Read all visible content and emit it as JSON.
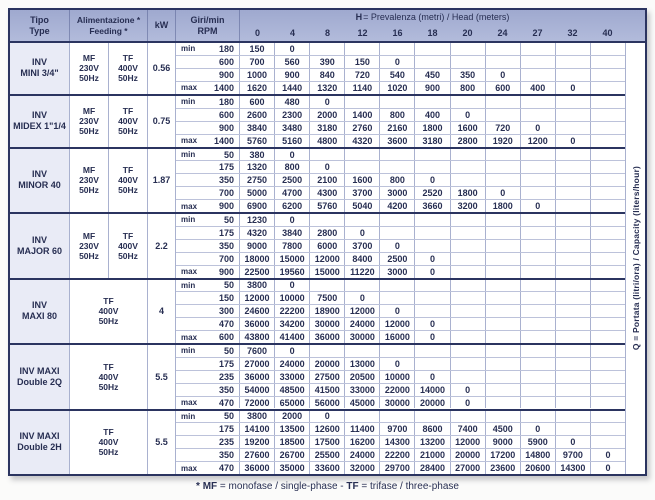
{
  "colors": {
    "header_bg_top": "#9fa9cf",
    "header_bg_bottom": "#b2bbdb",
    "group_name_bg": "#e9ebf6",
    "border_dark": "#2b3460",
    "grid_light": "#a9b1cf",
    "row_line": "#bcc2da",
    "text": "#272e52",
    "table_bg": "#ffffff",
    "page_bg": "#fbfbfa"
  },
  "header": {
    "tipo": [
      "Tipo",
      "Type"
    ],
    "feeding": [
      "Alimentazione *",
      "Feeding *"
    ],
    "kw": "kW",
    "rpm": [
      "Giri/min",
      "RPM"
    ],
    "head_title_bold": "H",
    "head_title_rest": " = Prevalenza (metri) / Head (meters)",
    "head_cols": [
      "0",
      "4",
      "8",
      "12",
      "16",
      "18",
      "20",
      "24",
      "27",
      "32",
      "40"
    ]
  },
  "q_label": "Q = Portata (litri/ora) / Capacity (liters/hour)",
  "footnote": {
    "star": "* ",
    "mf": "MF",
    "mf_rest": " = monofase / single-phase - ",
    "tf": "TF",
    "tf_rest": " = trifase / three-phase"
  },
  "groups": [
    {
      "name": [
        "INV",
        "MINI 3/4\""
      ],
      "feeding": [
        [
          "MF",
          "230V",
          "50Hz"
        ],
        [
          "TF",
          "400V",
          "50Hz"
        ]
      ],
      "kw": "0.56",
      "rows": [
        {
          "label": "min",
          "rpm": "180",
          "values": [
            "150",
            "0",
            "",
            "",
            "",
            "",
            "",
            "",
            "",
            "",
            ""
          ]
        },
        {
          "label": "",
          "rpm": "600",
          "values": [
            "700",
            "560",
            "390",
            "150",
            "0",
            "",
            "",
            "",
            "",
            "",
            ""
          ]
        },
        {
          "label": "",
          "rpm": "900",
          "values": [
            "1000",
            "900",
            "840",
            "720",
            "540",
            "450",
            "350",
            "0",
            "",
            "",
            ""
          ]
        },
        {
          "label": "max",
          "rpm": "1400",
          "values": [
            "1620",
            "1440",
            "1320",
            "1140",
            "1020",
            "900",
            "800",
            "600",
            "400",
            "0",
            ""
          ]
        }
      ]
    },
    {
      "name": [
        "INV",
        "MIDEX 1\"1/4"
      ],
      "feeding": [
        [
          "MF",
          "230V",
          "50Hz"
        ],
        [
          "TF",
          "400V",
          "50Hz"
        ]
      ],
      "kw": "0.75",
      "rows": [
        {
          "label": "min",
          "rpm": "180",
          "values": [
            "600",
            "480",
            "0",
            "",
            "",
            "",
            "",
            "",
            "",
            "",
            ""
          ]
        },
        {
          "label": "",
          "rpm": "600",
          "values": [
            "2600",
            "2300",
            "2000",
            "1400",
            "800",
            "400",
            "0",
            "",
            "",
            "",
            ""
          ]
        },
        {
          "label": "",
          "rpm": "900",
          "values": [
            "3840",
            "3480",
            "3180",
            "2760",
            "2160",
            "1800",
            "1600",
            "720",
            "0",
            "",
            ""
          ]
        },
        {
          "label": "max",
          "rpm": "1400",
          "values": [
            "5760",
            "5160",
            "4800",
            "4320",
            "3600",
            "3180",
            "2800",
            "1920",
            "1200",
            "0",
            ""
          ]
        }
      ]
    },
    {
      "name": [
        "INV",
        "MINOR 40"
      ],
      "feeding": [
        [
          "MF",
          "230V",
          "50Hz"
        ],
        [
          "TF",
          "400V",
          "50Hz"
        ]
      ],
      "kw": "1.87",
      "rows": [
        {
          "label": "min",
          "rpm": "50",
          "values": [
            "380",
            "0",
            "",
            "",
            "",
            "",
            "",
            "",
            "",
            "",
            ""
          ]
        },
        {
          "label": "",
          "rpm": "175",
          "values": [
            "1320",
            "800",
            "0",
            "",
            "",
            "",
            "",
            "",
            "",
            "",
            ""
          ]
        },
        {
          "label": "",
          "rpm": "350",
          "values": [
            "2750",
            "2500",
            "2100",
            "1600",
            "800",
            "0",
            "",
            "",
            "",
            "",
            ""
          ]
        },
        {
          "label": "",
          "rpm": "700",
          "values": [
            "5000",
            "4700",
            "4300",
            "3700",
            "3000",
            "2520",
            "1800",
            "0",
            "",
            "",
            ""
          ]
        },
        {
          "label": "max",
          "rpm": "900",
          "values": [
            "6900",
            "6200",
            "5760",
            "5040",
            "4200",
            "3660",
            "3200",
            "1800",
            "0",
            "",
            ""
          ]
        }
      ]
    },
    {
      "name": [
        "INV",
        "MAJOR 60"
      ],
      "feeding": [
        [
          "MF",
          "230V",
          "50Hz"
        ],
        [
          "TF",
          "400V",
          "50Hz"
        ]
      ],
      "kw": "2.2",
      "rows": [
        {
          "label": "min",
          "rpm": "50",
          "values": [
            "1230",
            "0",
            "",
            "",
            "",
            "",
            "",
            "",
            "",
            "",
            ""
          ]
        },
        {
          "label": "",
          "rpm": "175",
          "values": [
            "4320",
            "3840",
            "2800",
            "0",
            "",
            "",
            "",
            "",
            "",
            "",
            ""
          ]
        },
        {
          "label": "",
          "rpm": "350",
          "values": [
            "9000",
            "7800",
            "6000",
            "3700",
            "0",
            "",
            "",
            "",
            "",
            "",
            ""
          ]
        },
        {
          "label": "",
          "rpm": "700",
          "values": [
            "18000",
            "15000",
            "12000",
            "8400",
            "2500",
            "0",
            "",
            "",
            "",
            "",
            ""
          ]
        },
        {
          "label": "max",
          "rpm": "900",
          "values": [
            "22500",
            "19560",
            "15000",
            "11220",
            "3000",
            "0",
            "",
            "",
            "",
            "",
            ""
          ]
        }
      ]
    },
    {
      "name": [
        "INV",
        "MAXI 80"
      ],
      "feeding": [
        [
          "TF",
          "400V",
          "50Hz"
        ]
      ],
      "kw": "4",
      "rows": [
        {
          "label": "min",
          "rpm": "50",
          "values": [
            "3800",
            "0",
            "",
            "",
            "",
            "",
            "",
            "",
            "",
            "",
            ""
          ]
        },
        {
          "label": "",
          "rpm": "150",
          "values": [
            "12000",
            "10000",
            "7500",
            "0",
            "",
            "",
            "",
            "",
            "",
            "",
            ""
          ]
        },
        {
          "label": "",
          "rpm": "300",
          "values": [
            "24600",
            "22200",
            "18900",
            "12000",
            "0",
            "",
            "",
            "",
            "",
            "",
            ""
          ]
        },
        {
          "label": "",
          "rpm": "470",
          "values": [
            "36000",
            "34200",
            "30000",
            "24000",
            "12000",
            "0",
            "",
            "",
            "",
            "",
            ""
          ]
        },
        {
          "label": "max",
          "rpm": "600",
          "values": [
            "43800",
            "41400",
            "36000",
            "30000",
            "16000",
            "0",
            "",
            "",
            "",
            "",
            ""
          ]
        }
      ]
    },
    {
      "name": [
        "INV MAXI",
        "Double 2Q"
      ],
      "feeding": [
        [
          "TF",
          "400V",
          "50Hz"
        ]
      ],
      "kw": "5.5",
      "rows": [
        {
          "label": "min",
          "rpm": "50",
          "values": [
            "7600",
            "0",
            "",
            "",
            "",
            "",
            "",
            "",
            "",
            "",
            ""
          ]
        },
        {
          "label": "",
          "rpm": "175",
          "values": [
            "27000",
            "24000",
            "20000",
            "13000",
            "0",
            "",
            "",
            "",
            "",
            "",
            ""
          ]
        },
        {
          "label": "",
          "rpm": "235",
          "values": [
            "36000",
            "33000",
            "27500",
            "20500",
            "10000",
            "0",
            "",
            "",
            "",
            "",
            ""
          ]
        },
        {
          "label": "",
          "rpm": "350",
          "values": [
            "54000",
            "48500",
            "41500",
            "33000",
            "22000",
            "14000",
            "0",
            "",
            "",
            "",
            ""
          ]
        },
        {
          "label": "max",
          "rpm": "470",
          "values": [
            "72000",
            "65000",
            "56000",
            "45000",
            "30000",
            "20000",
            "0",
            "",
            "",
            "",
            ""
          ]
        }
      ]
    },
    {
      "name": [
        "INV MAXI",
        "Double 2H"
      ],
      "feeding": [
        [
          "TF",
          "400V",
          "50Hz"
        ]
      ],
      "kw": "5.5",
      "rows": [
        {
          "label": "min",
          "rpm": "50",
          "values": [
            "3800",
            "2000",
            "0",
            "",
            "",
            "",
            "",
            "",
            "",
            "",
            ""
          ]
        },
        {
          "label": "",
          "rpm": "175",
          "values": [
            "14100",
            "13500",
            "12600",
            "11400",
            "9700",
            "8600",
            "7400",
            "4500",
            "0",
            "",
            ""
          ]
        },
        {
          "label": "",
          "rpm": "235",
          "values": [
            "19200",
            "18500",
            "17500",
            "16200",
            "14300",
            "13200",
            "12000",
            "9000",
            "5900",
            "0",
            ""
          ]
        },
        {
          "label": "",
          "rpm": "350",
          "values": [
            "27600",
            "26700",
            "25500",
            "24000",
            "22200",
            "21000",
            "20000",
            "17200",
            "14800",
            "9700",
            "0"
          ]
        },
        {
          "label": "max",
          "rpm": "470",
          "values": [
            "36000",
            "35000",
            "33600",
            "32000",
            "29700",
            "28400",
            "27000",
            "23600",
            "20600",
            "14300",
            "0"
          ]
        }
      ]
    }
  ]
}
